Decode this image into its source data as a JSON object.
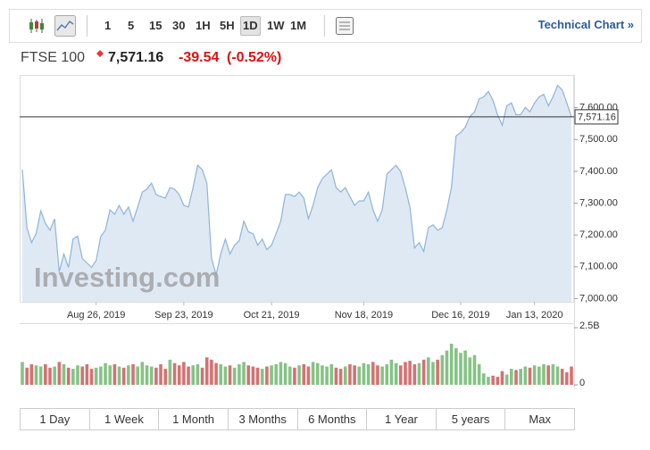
{
  "toolbar": {
    "intervals": [
      "1",
      "5",
      "15",
      "30",
      "1H",
      "5H",
      "1D",
      "1W",
      "1M"
    ],
    "selected_interval": 6,
    "technical_chart": "Technical Chart »"
  },
  "header": {
    "name": "FTSE 100",
    "last": "7,571.16",
    "change": "-39.54",
    "change_pct": "(-0.52%)"
  },
  "watermark": "Investing.com",
  "ranges": [
    "1 Day",
    "1 Week",
    "1 Month",
    "3 Months",
    "6 Months",
    "1 Year",
    "5 years",
    "Max"
  ],
  "chart_data": [
    {
      "type": "area",
      "color": "#8db4da",
      "fill": "#dfe9f4",
      "categories": [
        null,
        null,
        null,
        null,
        null,
        null,
        null,
        null,
        null,
        null,
        null,
        null,
        null,
        null,
        null,
        null,
        "Aug 26, 2019",
        null,
        null,
        null,
        null,
        null,
        null,
        null,
        null,
        null,
        null,
        null,
        null,
        null,
        null,
        null,
        null,
        null,
        null,
        "Sep 23, 2019",
        null,
        null,
        null,
        null,
        null,
        null,
        null,
        null,
        null,
        null,
        null,
        null,
        null,
        null,
        null,
        null,
        null,
        null,
        "Oct 21, 2019",
        null,
        null,
        null,
        null,
        null,
        null,
        null,
        null,
        null,
        null,
        null,
        null,
        null,
        null,
        null,
        null,
        null,
        null,
        null,
        "Nov 18, 2019",
        null,
        null,
        null,
        null,
        null,
        null,
        null,
        null,
        null,
        null,
        null,
        null,
        null,
        null,
        null,
        null,
        null,
        null,
        null,
        null,
        "Dec 16, 2019",
        null,
        null,
        null,
        null,
        null,
        null,
        null,
        null,
        null,
        null,
        null,
        null,
        null,
        null,
        null,
        "Jan 13, 2020",
        null,
        null,
        null,
        null,
        null,
        null,
        null,
        null
      ],
      "values": [
        7405,
        7223,
        7176,
        7204,
        7276,
        7237,
        7215,
        7251,
        7084,
        7140,
        7098,
        7187,
        7196,
        7126,
        7112,
        7098,
        7120,
        7196,
        7215,
        7279,
        7265,
        7293,
        7265,
        7288,
        7243,
        7288,
        7335,
        7344,
        7363,
        7327,
        7321,
        7316,
        7349,
        7344,
        7327,
        7293,
        7288,
        7349,
        7419,
        7405,
        7363,
        7126,
        7075,
        7140,
        7187,
        7140,
        7168,
        7182,
        7243,
        7210,
        7204,
        7168,
        7187,
        7154,
        7168,
        7204,
        7243,
        7327,
        7327,
        7321,
        7335,
        7316,
        7251,
        7293,
        7349,
        7377,
        7391,
        7405,
        7349,
        7335,
        7349,
        7321,
        7293,
        7307,
        7307,
        7335,
        7279,
        7243,
        7279,
        7391,
        7405,
        7419,
        7399,
        7349,
        7288,
        7159,
        7176,
        7148,
        7223,
        7232,
        7215,
        7223,
        7279,
        7349,
        7511,
        7522,
        7539,
        7573,
        7587,
        7628,
        7634,
        7651,
        7623,
        7578,
        7545,
        7606,
        7615,
        7578,
        7578,
        7601,
        7587,
        7615,
        7634,
        7642,
        7606,
        7634,
        7670,
        7656,
        7615,
        7571.16
      ],
      "ylim": [
        6990,
        7700
      ],
      "yticks": [
        {
          "value": 7000,
          "label": "7,000.00"
        },
        {
          "value": 7100,
          "label": "7,100.00"
        },
        {
          "value": 7200,
          "label": "7,200.00"
        },
        {
          "value": 7300,
          "label": "7,300.00"
        },
        {
          "value": 7400,
          "label": "7,400.00"
        },
        {
          "value": 7500,
          "label": "7,500.00"
        },
        {
          "value": 7600,
          "label": "7,600.00"
        }
      ],
      "last_price": {
        "value": 7571.16,
        "label": "7,571.16"
      }
    },
    {
      "type": "bar",
      "up_color": "#86c286",
      "down_color": "#d47272",
      "values": [
        1.0,
        0.75,
        0.9,
        0.85,
        0.8,
        0.9,
        0.75,
        0.8,
        1.0,
        0.9,
        0.75,
        0.7,
        0.85,
        0.8,
        0.9,
        0.7,
        0.75,
        0.8,
        0.95,
        0.85,
        0.9,
        0.8,
        0.75,
        0.85,
        0.9,
        0.8,
        1.0,
        0.85,
        0.8,
        0.75,
        0.9,
        0.7,
        1.1,
        0.95,
        0.85,
        1.0,
        0.8,
        0.85,
        0.9,
        0.75,
        1.2,
        1.1,
        0.95,
        0.9,
        0.8,
        0.85,
        0.75,
        0.9,
        1.0,
        0.85,
        0.8,
        0.75,
        0.7,
        0.8,
        0.85,
        0.9,
        1.0,
        0.95,
        0.8,
        0.75,
        0.85,
        0.9,
        0.8,
        1.0,
        0.95,
        0.85,
        0.8,
        0.9,
        0.75,
        0.7,
        0.8,
        0.9,
        0.85,
        0.8,
        0.95,
        0.9,
        1.0,
        0.85,
        0.8,
        0.9,
        1.1,
        0.95,
        0.85,
        1.0,
        1.05,
        0.9,
        0.95,
        1.1,
        1.2,
        1.0,
        1.1,
        1.3,
        1.5,
        1.8,
        1.6,
        1.4,
        1.5,
        1.2,
        1.3,
        0.9,
        0.5,
        0.35,
        0.4,
        0.35,
        0.6,
        0.45,
        0.7,
        0.65,
        0.7,
        0.8,
        0.75,
        0.85,
        0.8,
        0.9,
        0.85,
        0.9,
        0.8,
        0.7,
        0.55,
        0.8
      ],
      "ylim": [
        0,
        2.5
      ],
      "yticks": [
        0,
        {
          "value": 2.5,
          "label": "2.5B"
        }
      ]
    }
  ]
}
